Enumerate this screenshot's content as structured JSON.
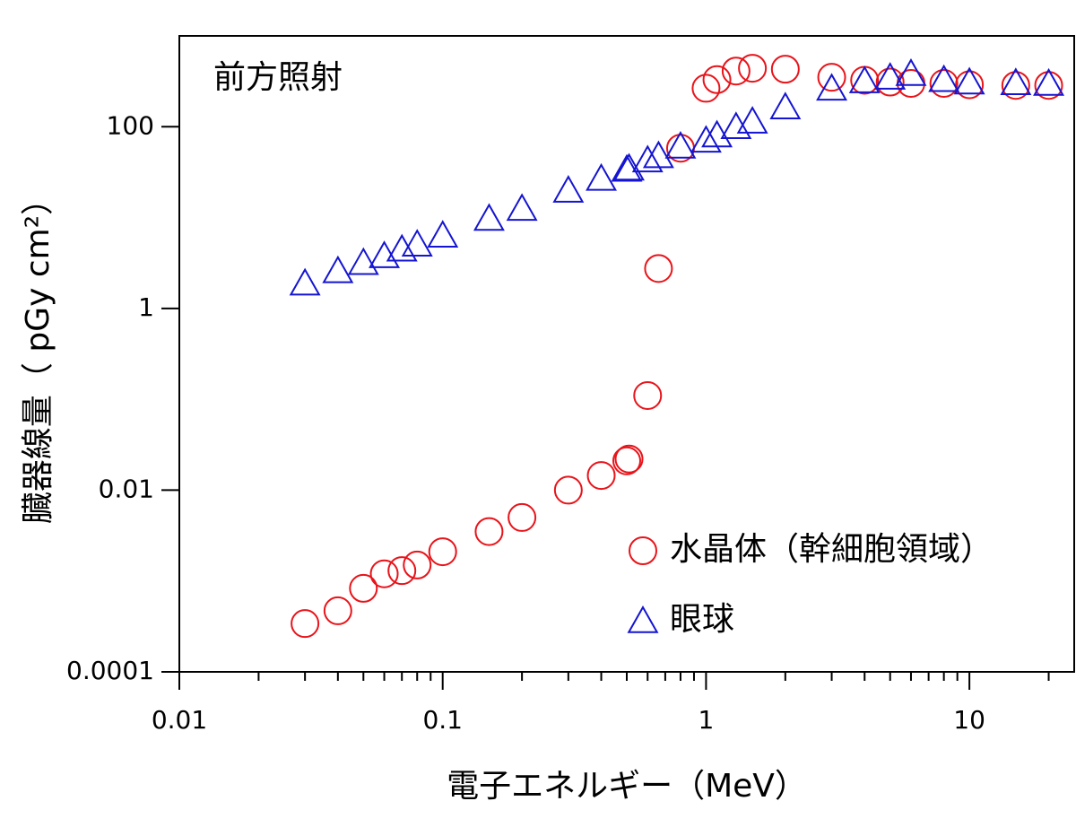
{
  "chart_data": {
    "type": "scatter",
    "xlabel": "電子エネルギー（MeV）",
    "ylabel": "臓器線量（ pGy cm²）",
    "annotation": "前方照射",
    "x": [
      0.03,
      0.04,
      0.05,
      0.06,
      0.07,
      0.08,
      0.1,
      0.15,
      0.2,
      0.3,
      0.4,
      0.5,
      0.51,
      0.6,
      0.66,
      0.8,
      1.0,
      1.1,
      1.3,
      1.5,
      2,
      3,
      4,
      5,
      6,
      8,
      10,
      15,
      20
    ],
    "series": [
      {
        "name": "水晶体（幹細胞領域）",
        "color": "#e8141a",
        "marker": "circle",
        "values": [
          0.00034,
          0.00047,
          0.00083,
          0.0012,
          0.0013,
          0.0015,
          0.0021,
          0.0035,
          0.005,
          0.01,
          0.0145,
          0.021,
          0.022,
          0.11,
          2.75,
          58,
          265,
          330,
          410,
          440,
          430,
          350,
          325,
          310,
          300,
          300,
          290,
          285,
          285
        ]
      },
      {
        "name": "眼球",
        "color": "#1414d2",
        "marker": "triangle",
        "values": [
          1.9,
          2.6,
          3.2,
          3.8,
          4.5,
          5.1,
          6.4,
          9.8,
          12.6,
          20,
          27,
          34,
          35,
          43,
          48,
          61,
          71,
          81,
          100,
          115,
          165,
          265,
          320,
          350,
          385,
          330,
          310,
          305,
          300
        ]
      }
    ],
    "xlim": [
      0.01,
      25
    ],
    "ylim": [
      0.0001,
      1000
    ],
    "xticks": [
      0.01,
      0.1,
      1,
      10
    ],
    "yticks": [
      0.0001,
      0.01,
      1,
      100
    ],
    "xscale": "log",
    "yscale": "log",
    "legend": "lower right"
  }
}
